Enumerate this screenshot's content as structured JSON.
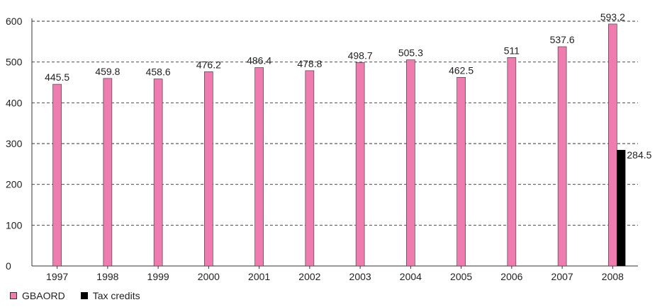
{
  "chart_data": {
    "type": "bar",
    "categories": [
      "1997",
      "1998",
      "1999",
      "2000",
      "2001",
      "2002",
      "2003",
      "2004",
      "2005",
      "2006",
      "2007",
      "2008"
    ],
    "series": [
      {
        "name": "GBAORD",
        "color": "#ee7cae",
        "values": [
          445.5,
          459.8,
          458.6,
          476.2,
          486.4,
          478.8,
          498.7,
          505.3,
          462.5,
          511,
          537.6,
          593.2
        ],
        "labels": [
          "445.5",
          "459.8",
          "458.6",
          "476.2",
          "486.4",
          "478.8",
          "498.7",
          "505.3",
          "462.5",
          "511",
          "537.6",
          "593.2"
        ]
      },
      {
        "name": "Tax credits",
        "color": "#000000",
        "values": [
          null,
          null,
          null,
          null,
          null,
          null,
          null,
          null,
          null,
          null,
          null,
          284.5
        ],
        "labels": [
          null,
          null,
          null,
          null,
          null,
          null,
          null,
          null,
          null,
          null,
          null,
          "284.5"
        ]
      }
    ],
    "yticks": [
      0,
      100,
      200,
      300,
      400,
      500,
      600
    ],
    "ylim": [
      0,
      600
    ],
    "grid": true,
    "legend_position": "bottom-left",
    "title": "",
    "xlabel": "",
    "ylabel": ""
  }
}
